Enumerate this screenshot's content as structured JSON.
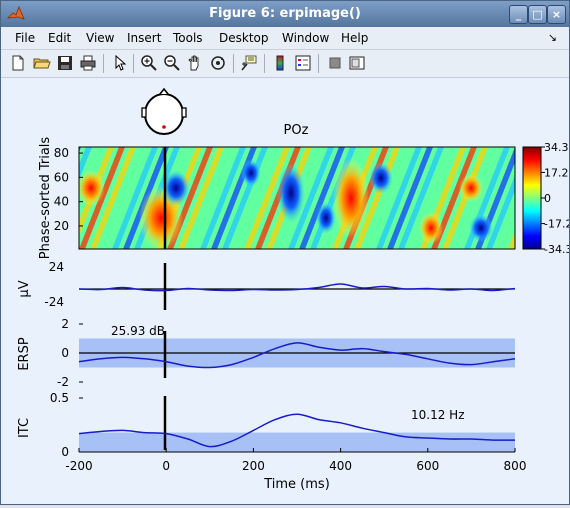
{
  "window": {
    "title": "Figure 6:  erpimage()",
    "controls": [
      "_",
      "□",
      "×"
    ]
  },
  "menu": [
    "File",
    "Edit",
    "View",
    "Insert",
    "Tools",
    "Desktop",
    "Window",
    "Help"
  ],
  "menu_pin": "↘",
  "toolbar": [
    "new-file",
    "open-folder",
    "save",
    "print",
    "pointer",
    "zoom-in",
    "zoom-out",
    "pan",
    "rotate-3d",
    "data-cursor",
    "colorbar",
    "legend",
    "hide-plot-tools",
    "show-plot-tools"
  ],
  "figure": {
    "channel_label": "POz",
    "colorbar_ticks": [
      "34.3",
      "17.2",
      "0",
      "-17.2",
      "-34.3"
    ],
    "colors": {
      "background": "#e9f2fc",
      "band": "#a7c0f5",
      "trace": "#1a1ac8"
    }
  },
  "chart_data": [
    {
      "type": "heatmap",
      "title": "POz",
      "ylabel": "Phase-sorted Trials",
      "ylim": [
        1,
        85
      ],
      "yticks": [
        "80",
        "60",
        "40",
        "20"
      ],
      "xlim": [
        -200,
        800
      ],
      "event_line_x": 0,
      "color_range": [
        -34.3,
        34.3
      ]
    },
    {
      "type": "line",
      "ylabel": "μV",
      "ytick_labels": [
        "24",
        "-24"
      ],
      "ylim": [
        -24,
        24
      ],
      "xlim": [
        -200,
        800
      ],
      "x": [
        -200,
        -150,
        -100,
        -50,
        0,
        50,
        100,
        150,
        200,
        250,
        300,
        350,
        400,
        450,
        500,
        550,
        600,
        650,
        700,
        750,
        800
      ],
      "values": [
        0,
        -1,
        3,
        -2,
        -3,
        1,
        -2,
        -3,
        -1,
        -2,
        -1,
        3,
        10,
        2,
        5,
        0,
        1,
        -2,
        0,
        -3,
        1
      ]
    },
    {
      "type": "line",
      "ylabel": "ERSP",
      "yticks": [
        "2",
        "0",
        "-2"
      ],
      "ylim": [
        -2,
        2
      ],
      "xlim": [
        -200,
        800
      ],
      "annotation": "25.93 dB",
      "significance_band": [
        -1,
        1
      ],
      "x": [
        -200,
        -150,
        -100,
        -50,
        0,
        50,
        100,
        150,
        200,
        250,
        300,
        350,
        400,
        450,
        500,
        550,
        600,
        650,
        700,
        750,
        800
      ],
      "values": [
        -0.6,
        -0.4,
        -0.3,
        -0.4,
        -0.6,
        -0.9,
        -1.0,
        -0.8,
        -0.3,
        0.3,
        0.7,
        0.4,
        0.2,
        0.3,
        0.1,
        -0.1,
        -0.4,
        -0.7,
        -0.8,
        -0.6,
        -0.4
      ]
    },
    {
      "type": "line",
      "ylabel": "ITC",
      "yticks": [
        "0.5",
        "0"
      ],
      "ylim": [
        0,
        0.5
      ],
      "xlim": [
        -200,
        800
      ],
      "xlabel": "Time (ms)",
      "xticks": [
        "-200",
        "0",
        "200",
        "400",
        "600",
        "800"
      ],
      "annotation": "10.12 Hz",
      "significance_band": [
        0,
        0.18
      ],
      "x": [
        -200,
        -150,
        -100,
        -50,
        0,
        50,
        100,
        150,
        200,
        250,
        300,
        350,
        400,
        450,
        500,
        550,
        600,
        650,
        700,
        750,
        800
      ],
      "values": [
        0.17,
        0.19,
        0.2,
        0.18,
        0.17,
        0.12,
        0.05,
        0.1,
        0.2,
        0.3,
        0.35,
        0.3,
        0.27,
        0.22,
        0.18,
        0.14,
        0.13,
        0.12,
        0.12,
        0.11,
        0.11
      ]
    }
  ]
}
